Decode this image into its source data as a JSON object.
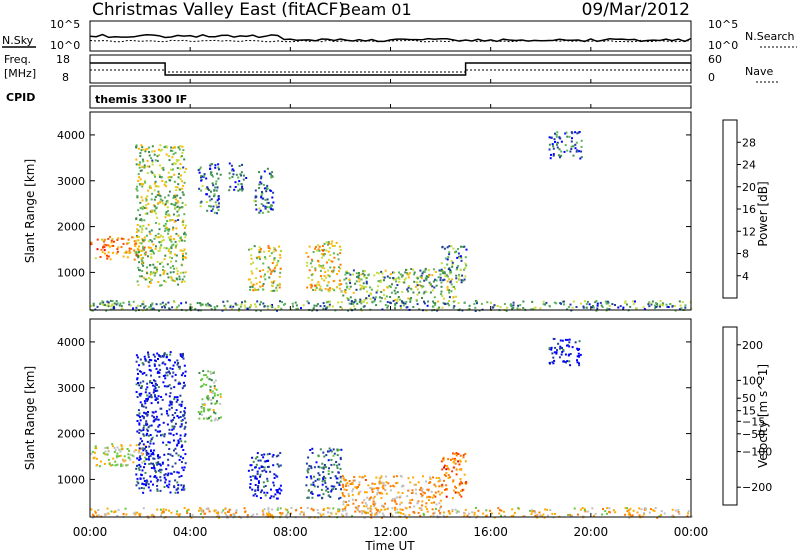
{
  "header": {
    "radar": "Christmas Valley East (fitACF)",
    "beam": "Beam 01",
    "date": "09/Mar/2012"
  },
  "control_panel": {
    "nsky_label": "N.Sky",
    "nsky_ticks": [
      "10^5",
      "10^0"
    ],
    "nsearch_label": "N.Search",
    "nsearch_ticks": [
      "10^5",
      "10^0"
    ],
    "freq_label_1": "Freq.",
    "freq_label_2": "[MHz]",
    "freq_ticks": [
      "18",
      "8"
    ],
    "nave_label": "Nave",
    "nave_ticks": [
      "60",
      "0"
    ],
    "cpid_label": "CPID",
    "cpid_value": "themis 3300 IF"
  },
  "time_axis": {
    "label": "Time UT",
    "ticks": [
      "00:00",
      "04:00",
      "08:00",
      "12:00",
      "16:00",
      "20:00",
      "00:00"
    ]
  },
  "range_axis": {
    "label": "Slant Range [km]",
    "ticks": [
      "1000",
      "2000",
      "3000",
      "4000"
    ]
  },
  "colors": {
    "power": [
      "#0000ff",
      "#1e3ca0",
      "#3c8c50",
      "#5ab45a",
      "#c8dc3c",
      "#ffb400",
      "#ff7800",
      "#ff3c00",
      "#ff0000"
    ],
    "velocity": [
      "#dc0000",
      "#ff3c00",
      "#ff7800",
      "#ffaa00",
      "#c0c0c0",
      "#64c83c",
      "#3c8c50",
      "#1e3ca0",
      "#0000ff"
    ],
    "ground_scatter": "#a0a0a0"
  },
  "chart_data": [
    {
      "type": "heatmap",
      "title": "Power",
      "xlabel": "Time UT",
      "ylabel": "Slant Range [km]",
      "xlim": [
        0,
        24
      ],
      "ylim": [
        180,
        4500
      ],
      "colorbar": {
        "label": "Power [dB]",
        "ticks": [
          4,
          8,
          12,
          16,
          20,
          24,
          28
        ],
        "range": [
          0,
          32
        ]
      },
      "regions": [
        {
          "name": "",
          "t": [
            0.0,
            2.2
          ],
          "range": [
            1300,
            1800
          ],
          "value": 22
        },
        {
          "name": "",
          "t": [
            1.8,
            3.8
          ],
          "range": [
            700,
            3800
          ],
          "value": 14
        },
        {
          "name": "",
          "t": [
            4.3,
            5.2
          ],
          "range": [
            2300,
            3400
          ],
          "value": 8
        },
        {
          "name": "",
          "t": [
            5.5,
            6.2
          ],
          "range": [
            2800,
            3400
          ],
          "value": 6
        },
        {
          "name": "",
          "t": [
            6.3,
            7.6
          ],
          "range": [
            600,
            1600
          ],
          "value": 16
        },
        {
          "name": "",
          "t": [
            6.5,
            7.3
          ],
          "range": [
            2300,
            3300
          ],
          "value": 8
        },
        {
          "name": "",
          "t": [
            8.6,
            10.0
          ],
          "range": [
            600,
            1700
          ],
          "value": 18
        },
        {
          "name": "",
          "t": [
            10.0,
            14.6
          ],
          "range": [
            350,
            1100
          ],
          "value": 12
        },
        {
          "name": "",
          "t": [
            14.0,
            15.0
          ],
          "range": [
            800,
            1600
          ],
          "value": 10
        },
        {
          "name": "",
          "t": [
            18.3,
            19.6
          ],
          "range": [
            3500,
            4100
          ],
          "value": 6
        },
        {
          "name": "",
          "t": [
            0.0,
            24.0
          ],
          "range": [
            180,
            400
          ],
          "value": 10
        }
      ]
    },
    {
      "type": "heatmap",
      "title": "Velocity",
      "xlabel": "Time UT",
      "ylabel": "Slant Range [km]",
      "xlim": [
        0,
        24
      ],
      "ylim": [
        180,
        4500
      ],
      "colorbar": {
        "label": "Velocity [m s^-1]",
        "ticks": [
          -200,
          -100,
          -50,
          -15,
          15,
          50,
          100,
          200
        ],
        "range": [
          -250,
          250
        ]
      },
      "regions": [
        {
          "name": "",
          "t": [
            0.0,
            2.2
          ],
          "range": [
            1300,
            1800
          ],
          "value": 0
        },
        {
          "name": "",
          "t": [
            1.8,
            3.8
          ],
          "range": [
            700,
            3800
          ],
          "value": 200
        },
        {
          "name": "",
          "t": [
            4.3,
            5.2
          ],
          "range": [
            2300,
            3400
          ],
          "value": 40
        },
        {
          "name": "",
          "t": [
            6.3,
            7.6
          ],
          "range": [
            600,
            1600
          ],
          "value": 200
        },
        {
          "name": "",
          "t": [
            8.6,
            10.0
          ],
          "range": [
            600,
            1700
          ],
          "value": 150
        },
        {
          "name": "",
          "t": [
            10.0,
            14.0
          ],
          "range": [
            350,
            1100
          ],
          "value": -60
        },
        {
          "name": "",
          "t": [
            14.0,
            15.0
          ],
          "range": [
            600,
            1600
          ],
          "value": -120
        },
        {
          "name": "",
          "t": [
            18.3,
            19.6
          ],
          "range": [
            3500,
            4100
          ],
          "value": 200
        },
        {
          "name": "",
          "t": [
            0.0,
            24.0
          ],
          "range": [
            180,
            400
          ],
          "value": -40
        }
      ]
    }
  ]
}
